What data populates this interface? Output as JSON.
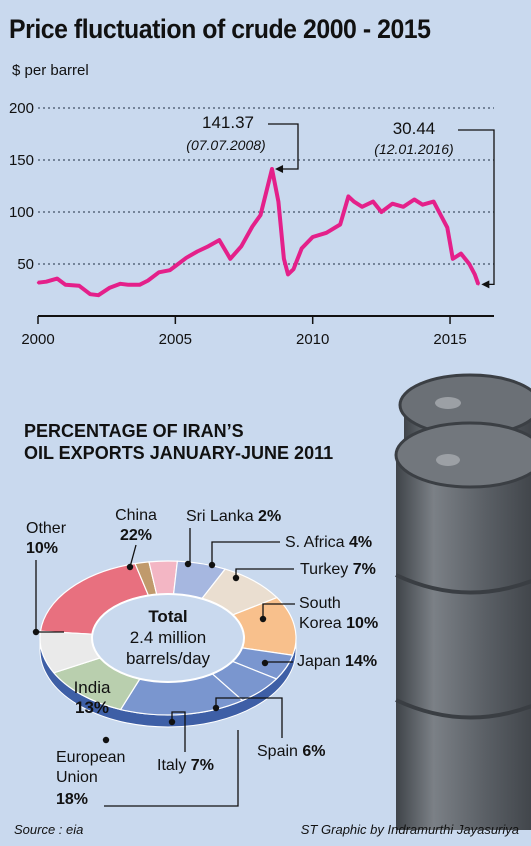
{
  "title": "Price fluctuation of crude 2000 - 2015",
  "price_chart_ylabel": "$ per barrel",
  "pie_title": [
    "PERCENTAGE OF IRAN’S",
    "OIL EXPORTS JANUARY-JUNE 2011"
  ],
  "pie_center": [
    "Total",
    "2.4 million",
    "barrels/day"
  ],
  "source": "Source : eia",
  "credit": "ST Graphic by Indramurthi Jayasuriya",
  "colors": {
    "background": "#c9d9ee",
    "price_line": "#e4208a",
    "grid": "#1f2f44",
    "barrel": "#5c6167"
  },
  "icons": [
    "oil-barrel-illustration"
  ],
  "chart_data": [
    {
      "type": "line",
      "title": "Price fluctuation of crude 2000 - 2015",
      "ylabel": "$ per barrel",
      "xlabel": "",
      "xlim": [
        2000,
        2016.6
      ],
      "ylim": [
        0,
        200
      ],
      "xticks": [
        2000,
        2005,
        2010,
        2015
      ],
      "yticks": [
        50,
        100,
        150,
        200
      ],
      "grid": true,
      "series": [
        {
          "x": [
            2000.0,
            2000.3,
            2000.7,
            2001.0,
            2001.5,
            2001.9,
            2002.2,
            2002.6,
            2003.0,
            2003.3,
            2003.7,
            2004.0,
            2004.4,
            2004.8,
            2005.0,
            2005.4,
            2005.8,
            2006.2,
            2006.6,
            2007.0,
            2007.4,
            2007.8,
            2008.1,
            2008.52,
            2008.75,
            2008.95,
            2009.1,
            2009.3,
            2009.6,
            2010.0,
            2010.5,
            2011.0,
            2011.3,
            2011.5,
            2011.8,
            2012.2,
            2012.5,
            2012.9,
            2013.3,
            2013.7,
            2014.0,
            2014.4,
            2014.6,
            2014.9,
            2015.1,
            2015.4,
            2015.7,
            2015.9,
            2016.03
          ],
          "values": [
            32,
            33,
            36,
            30,
            29,
            21,
            20,
            27,
            31,
            30,
            30,
            34,
            42,
            44,
            48,
            56,
            62,
            67,
            73,
            55,
            67,
            86,
            97,
            141.37,
            110,
            55,
            40,
            45,
            65,
            76,
            80,
            88,
            115,
            110,
            105,
            110,
            100,
            108,
            105,
            112,
            107,
            110,
            100,
            85,
            55,
            60,
            50,
            40,
            30.44
          ]
        }
      ],
      "annotations": [
        {
          "value": "141.37",
          "date": "(07.07.2008)",
          "x": 2008.52,
          "y": 141.37
        },
        {
          "value": "30.44",
          "date": "(12.01.2016)",
          "x": 2016.03,
          "y": 30.44
        }
      ]
    },
    {
      "type": "pie",
      "title": "PERCENTAGE OF IRAN’S OIL EXPORTS JANUARY-JUNE 2011",
      "categories": [
        "China",
        "Sri Lanka",
        "S. Africa",
        "Turkey",
        "South Korea",
        "Japan",
        "Spain",
        "Italy",
        "European Union",
        "India",
        "Other"
      ],
      "values": [
        22,
        2,
        4,
        7,
        10,
        14,
        6,
        7,
        18,
        13,
        10
      ],
      "label_texts": [
        [
          "China",
          "22%"
        ],
        [
          "Sri Lanka",
          "2%"
        ],
        [
          "S. Africa",
          "4%"
        ],
        [
          "Turkey",
          "7%"
        ],
        [
          "South",
          "Korea",
          "10%"
        ],
        [
          "Japan",
          "14%"
        ],
        [
          "Spain",
          "6%"
        ],
        [
          "Italy",
          "7%"
        ],
        [
          "European",
          "Union",
          "18%"
        ],
        [
          "India",
          "13%"
        ],
        [
          "Other",
          "10%"
        ]
      ],
      "colors": [
        "#e8707f",
        "#c09a6c",
        "#f3b6c4",
        "#a6b7e0",
        "#eaded0",
        "#f8c08c",
        "#7a96cf",
        "#7a96cf",
        "#7a96cf",
        "#b9cfae",
        "#eaeaea"
      ]
    }
  ]
}
